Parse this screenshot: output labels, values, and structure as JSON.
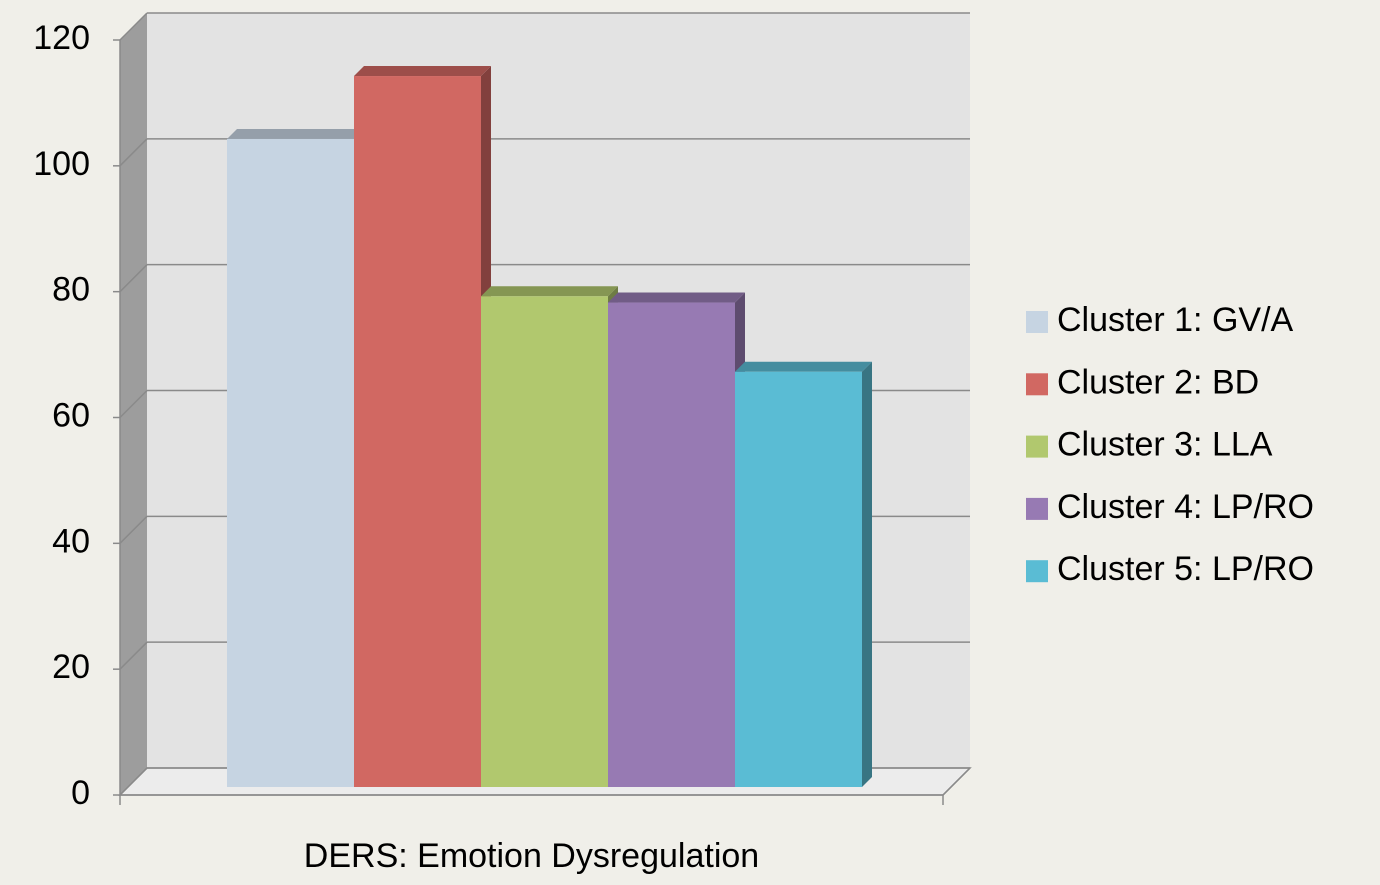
{
  "chart_data": {
    "type": "bar3d",
    "categories": [
      "DERS: Emotion Dysregulation"
    ],
    "series": [
      {
        "name": "Cluster 1: GV/A",
        "color": "#c6d4e2",
        "values": [
          103
        ]
      },
      {
        "name": "Cluster 2: BD",
        "color": "#d16862",
        "values": [
          113
        ]
      },
      {
        "name": "Cluster 3: LLA",
        "color": "#b1c86e",
        "values": [
          78
        ]
      },
      {
        "name": "Cluster 4: LP/RO",
        "color": "#977ab3",
        "values": [
          77
        ]
      },
      {
        "name": "Cluster 5: LP/RO",
        "color": "#5abcd4",
        "values": [
          66
        ]
      }
    ],
    "ylim": [
      0,
      120
    ],
    "yticks": [
      0,
      20,
      40,
      60,
      80,
      100,
      120
    ],
    "grid": true,
    "legend": "right"
  }
}
